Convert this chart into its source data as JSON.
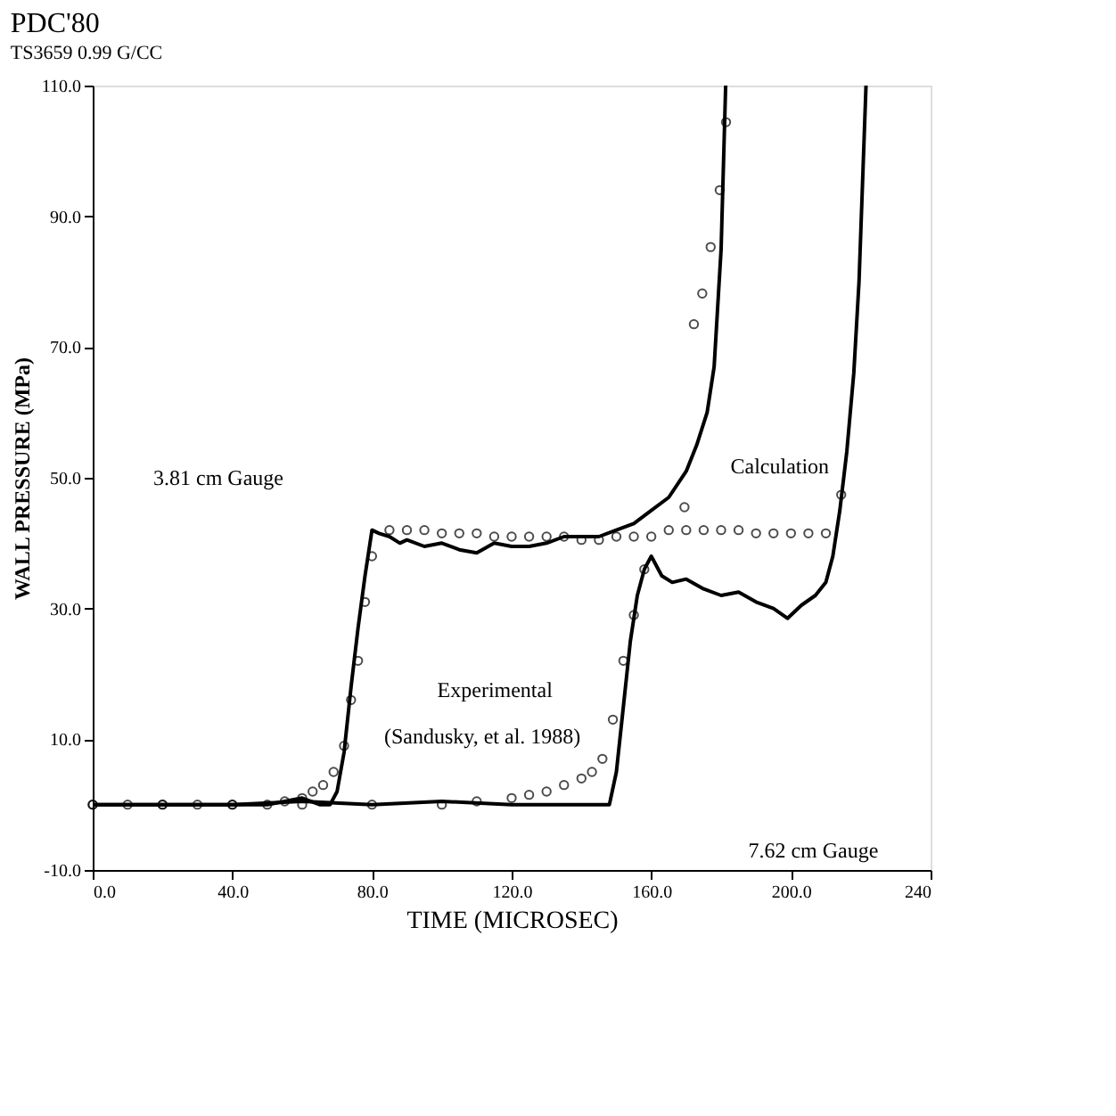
{
  "chart_data": {
    "type": "line",
    "title": "PDC'80",
    "subtitle": "TS3659  0.99  G/CC",
    "xlabel": "TIME (MICROSEC)",
    "ylabel": "WALL PRESSURE (MPa)",
    "xlim": [
      0,
      240
    ],
    "ylim": [
      -10,
      110
    ],
    "xticks": [
      {
        "value": 0,
        "label": "0.0"
      },
      {
        "value": 40,
        "label": "40.0"
      },
      {
        "value": 80,
        "label": "80.0"
      },
      {
        "value": 120,
        "label": "120.0"
      },
      {
        "value": 160,
        "label": "160.0"
      },
      {
        "value": 200,
        "label": "200.0"
      },
      240
    ],
    "yticks": [
      {
        "value": -10,
        "label": "-10.0"
      },
      {
        "value": 10,
        "label": "10.0"
      },
      {
        "value": 30,
        "label": "30.0"
      },
      {
        "value": 50,
        "label": "50.0"
      },
      {
        "value": 70,
        "label": "70.0"
      },
      {
        "value": 90,
        "label": "90.0"
      },
      {
        "value": 110,
        "label": "110.0"
      }
    ],
    "grid": false,
    "series": [
      {
        "color": "#000000",
        "line_style": "solid",
        "x": [
          0,
          10,
          20,
          30,
          40,
          50,
          55,
          60,
          65,
          68,
          70,
          72,
          74,
          76,
          78,
          80,
          82,
          85,
          88,
          90,
          95,
          100,
          105,
          110,
          115,
          120,
          125,
          130,
          135,
          140,
          145,
          150,
          155,
          160,
          165,
          170,
          173,
          176,
          178,
          180,
          181.3
        ],
        "values": [
          0,
          0,
          0,
          0,
          0,
          0,
          0.5,
          1,
          0,
          0,
          2,
          8,
          18,
          27,
          35,
          42,
          41.5,
          41,
          40,
          40.5,
          39.5,
          40,
          39,
          38.5,
          40,
          39.5,
          39.5,
          40,
          41,
          41,
          41,
          42,
          43,
          45,
          47,
          51,
          55,
          60,
          67,
          85,
          110
        ]
      },
      {
        "type": "scatter",
        "color": "#000000",
        "marker": "circle",
        "x": [
          0,
          10,
          20,
          30,
          40,
          50,
          55,
          60,
          63,
          66,
          69,
          72,
          74,
          76,
          78,
          80,
          85,
          90,
          95,
          100,
          105,
          110,
          115,
          120,
          125,
          130,
          135,
          140,
          145,
          150,
          155,
          169.5,
          172.2,
          174.6,
          177,
          179.6,
          181.4
        ],
        "values": [
          0,
          0,
          0,
          0,
          0,
          0,
          0.5,
          1,
          2,
          3,
          5,
          9,
          16,
          22,
          31,
          38,
          42,
          42,
          42,
          41.5,
          41.5,
          41.5,
          41,
          41,
          41,
          41,
          41,
          40.5,
          40.5,
          41,
          41,
          45.5,
          73.5,
          78.2,
          85.3,
          94,
          104.4
        ]
      },
      {
        "color": "#000000",
        "line_style": "solid",
        "x": [
          0,
          20,
          40,
          60,
          80,
          100,
          120,
          140,
          145,
          148,
          150,
          152,
          154,
          156,
          158,
          160,
          163,
          166,
          170,
          175,
          180,
          185,
          190,
          195,
          199,
          203,
          207,
          210,
          212,
          214,
          216,
          218,
          219.5,
          220.5,
          221.5
        ],
        "values": [
          0,
          0,
          0,
          0.5,
          0,
          0.5,
          0,
          0,
          0,
          0,
          5,
          15,
          25,
          32,
          36,
          38,
          35,
          34,
          34.5,
          33,
          32,
          32.5,
          31,
          30,
          28.5,
          30.5,
          32,
          34,
          38,
          45,
          54,
          66,
          80,
          95,
          110
        ]
      },
      {
        "type": "scatter",
        "color": "#000000",
        "marker": "circle",
        "x": [
          0,
          20,
          40,
          60,
          80,
          100,
          110,
          120,
          125,
          130,
          135,
          140,
          143,
          146,
          149,
          152,
          155,
          158,
          160,
          165,
          170,
          175,
          180,
          185,
          190,
          195,
          200,
          205,
          210,
          214.4
        ],
        "values": [
          0,
          0,
          0,
          0,
          0,
          0,
          0.5,
          1,
          1.5,
          2,
          3,
          4,
          5,
          7,
          13,
          22,
          29,
          36,
          41,
          42,
          42,
          42,
          42,
          42,
          41.5,
          41.5,
          41.5,
          41.5,
          41.5,
          47.4
        ]
      }
    ],
    "annotations": [
      "3.81 cm Gauge",
      "Calculation",
      "Experimental",
      "(Sandusky, et al. 1988)",
      "7.62 cm Gauge"
    ]
  }
}
